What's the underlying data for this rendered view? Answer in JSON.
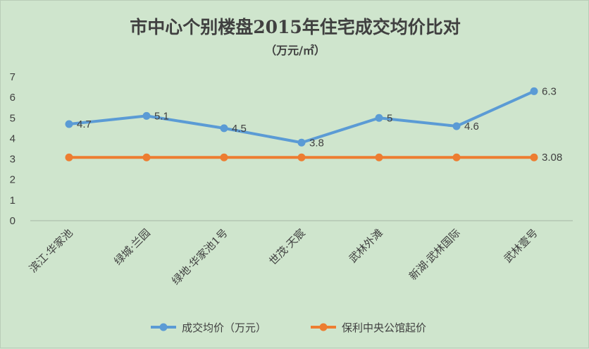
{
  "chart_data": {
    "type": "line",
    "title": "市中心个别楼盘2015年住宅成交均价比对",
    "subtitle": "（万元/㎡）",
    "categories": [
      "滨江·华家池",
      "绿城·兰园",
      "绿地·华家池1号",
      "世茂·天宸",
      "武林外滩",
      "新湖·武林国际",
      "武林壹号"
    ],
    "ylim": [
      0,
      7
    ],
    "yticks": [
      "0",
      "1",
      "2",
      "3",
      "4",
      "5",
      "6",
      "7"
    ],
    "grid": false,
    "legend_position": "bottom",
    "series": [
      {
        "name": "成交均价（万元）",
        "color": "#5b9bd5",
        "values": [
          4.7,
          5.1,
          4.5,
          3.8,
          5,
          4.6,
          6.3
        ],
        "data_labels": [
          "4.7",
          "5.1",
          "4.5",
          "3.8",
          "5",
          "4.6",
          "6.3"
        ]
      },
      {
        "name": "保利中央公馆起价",
        "color": "#ed7d31",
        "values": [
          3.08,
          3.08,
          3.08,
          3.08,
          3.08,
          3.08,
          3.08
        ],
        "data_labels": [
          "",
          "",
          "",
          "",
          "",
          "",
          "3.08"
        ]
      }
    ]
  }
}
